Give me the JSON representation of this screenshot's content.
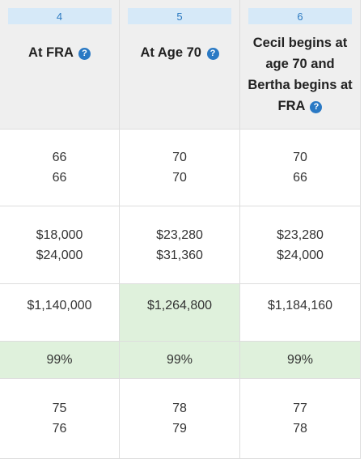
{
  "columns": [
    {
      "number": "4",
      "title": "At FRA",
      "ages": [
        "66",
        "66"
      ],
      "benefits": [
        "$18,000",
        "$24,000"
      ],
      "lifetime_total": "$1,140,000",
      "percent": "99%",
      "breakeven": [
        "75",
        "76"
      ]
    },
    {
      "number": "5",
      "title": "At Age 70",
      "ages": [
        "70",
        "70"
      ],
      "benefits": [
        "$23,280",
        "$31,360"
      ],
      "lifetime_total": "$1,264,800",
      "percent": "99%",
      "breakeven": [
        "78",
        "79"
      ]
    },
    {
      "number": "6",
      "title": "Cecil begins at age 70 and Bertha begins at FRA",
      "ages": [
        "70",
        "66"
      ],
      "benefits": [
        "$23,280",
        "$24,000"
      ],
      "lifetime_total": "$1,184,160",
      "percent": "99%",
      "breakeven": [
        "77",
        "78"
      ]
    }
  ],
  "help_glyph": "?",
  "colors": {
    "badge_bg": "#d6e9f8",
    "badge_text": "#2c7ac1",
    "help_icon": "#2a79c4",
    "highlight_green": "#dff1dc",
    "header_bg": "#efefef"
  },
  "highlighted_lifetime_column": 1
}
